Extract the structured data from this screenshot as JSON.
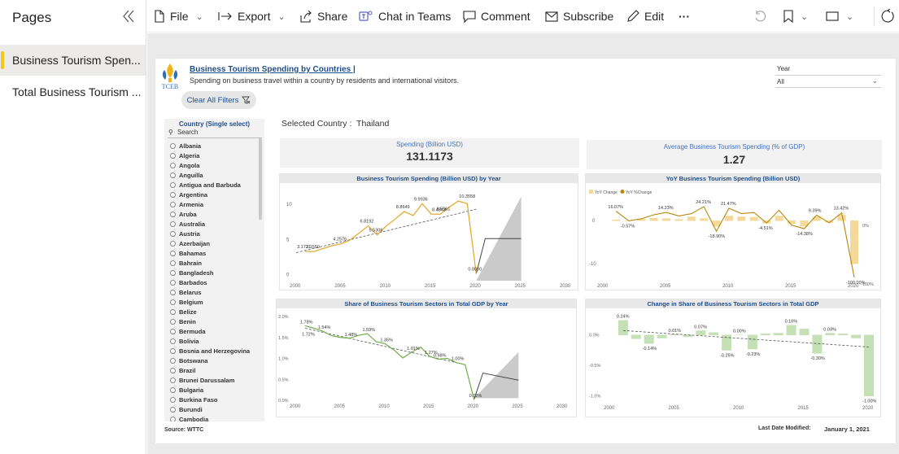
{
  "pages_pane": {
    "title": "Pages",
    "items": [
      {
        "label": "Business Tourism Spen..."
      },
      {
        "label": "Total Business Tourism ..."
      }
    ]
  },
  "toolbar": {
    "file": "File",
    "export": "Export",
    "share": "Share",
    "teams": "Chat in Teams",
    "comment": "Comment",
    "subscribe": "Subscribe",
    "edit": "Edit"
  },
  "report": {
    "title": "Business Tourism Spending by Countries |",
    "subtitle": "Spending on business travel within a country by residents and international visitors.",
    "logo_text": "TCEB",
    "clear_filters": "Clear All Filters",
    "year_label": "Year",
    "year_value": "All",
    "selected_country_label": "Selected Country :",
    "selected_country": "Thailand",
    "source": "Source: WTTC",
    "last_modified_label": "Last Date Modified:",
    "last_modified_value": "January 1, 2021"
  },
  "slicer": {
    "title": "Country (Single select)",
    "search": "Search",
    "countries": [
      "Albania",
      "Algeria",
      "Angola",
      "Anguilla",
      "Antigua and Barbuda",
      "Argentina",
      "Armenia",
      "Aruba",
      "Australia",
      "Austria",
      "Azerbaijan",
      "Bahamas",
      "Bahrain",
      "Bangladesh",
      "Barbados",
      "Belarus",
      "Belgium",
      "Belize",
      "Benin",
      "Bermuda",
      "Bolivia",
      "Bosnia and Herzegovina",
      "Botswana",
      "Brazil",
      "Brunei Darussalam",
      "Bulgaria",
      "Burkina Faso",
      "Burundi",
      "Cambodia"
    ]
  },
  "cards": {
    "spending_label": "Spending (Billion USD)",
    "spending_value": "131.1173",
    "gdp_label": "Average Business Tourism Spending (% of GDP)",
    "gdp_value": "1.27"
  },
  "chart_data": [
    {
      "type": "line",
      "title": "Business Tourism Spending (Billion USD) by Year",
      "x": [
        2001,
        2002,
        2003,
        2004,
        2005,
        2006,
        2007,
        2008,
        2009,
        2010,
        2011,
        2012,
        2013,
        2014,
        2015,
        2016,
        2017,
        2018,
        2019,
        2020
      ],
      "series": [
        {
          "values": [
            3.1721,
            3.155,
            3.6,
            4.0,
            4.2576,
            4.8,
            5.8,
            6.8192,
            5.5306,
            6.8,
            7.8,
            8.8649,
            8.3,
            9.9936,
            8.5,
            8.4843,
            9.5,
            10.3558,
            10.0,
            0.0
          ]
        }
      ],
      "labels": [
        {
          "year": 2001,
          "value": 3.1721,
          "text": "3.1721"
        },
        {
          "year": 2002,
          "value": 3.155,
          "text": "3.1550"
        },
        {
          "year": 2005,
          "value": 4.2576,
          "text": "4.2576"
        },
        {
          "year": 2008,
          "value": 6.8192,
          "text": "6.8192"
        },
        {
          "year": 2009,
          "value": 5.5306,
          "text": "5.5306"
        },
        {
          "year": 2012,
          "value": 8.8649,
          "text": "8.8649"
        },
        {
          "year": 2016,
          "value": 8.4843,
          "text": "8.4843"
        },
        {
          "year": 2014,
          "value": 9.9936,
          "text": "9.9936"
        },
        {
          "year": 2016.5,
          "value": 8.5561,
          "text": "8.5561"
        },
        {
          "year": 2019,
          "value": 10.3558,
          "text": "10.3558"
        },
        {
          "year": 2020,
          "value": 0.0,
          "text": "0.0000"
        }
      ],
      "forecast": {
        "x": [
          2020,
          2025
        ],
        "mid": [
          0,
          5
        ],
        "upper": [
          1,
          11
        ],
        "lower": [
          -1,
          -1
        ]
      },
      "trend": [
        [
          2000,
          3.0
        ],
        [
          2020,
          9.2
        ]
      ],
      "xlim": [
        2000,
        2030
      ],
      "ylim": [
        -1,
        12
      ],
      "yticks": [
        0,
        5,
        10
      ],
      "xticks": [
        2000,
        2005,
        2010,
        2015,
        2020,
        2025,
        2030
      ]
    },
    {
      "type": "bar",
      "title": "YoY Business Tourism Spending (Billion USD)",
      "legend": [
        "YoY Change",
        "YoY %Change"
      ],
      "x": [
        2001,
        2002,
        2003,
        2004,
        2005,
        2006,
        2007,
        2008,
        2009,
        2010,
        2011,
        2012,
        2013,
        2014,
        2015,
        2016,
        2017,
        2018,
        2019,
        2020
      ],
      "bar_values": [
        0.2,
        -0.02,
        0.4,
        0.6,
        0.5,
        0.3,
        0.9,
        0.5,
        -1.3,
        1.1,
        0.9,
        0.8,
        -0.6,
        1.1,
        -0.7,
        -1.3,
        0.9,
        -0.4,
        1.4,
        -10.0
      ],
      "pct_values": [
        16.07,
        -0.57,
        3,
        10,
        14.23,
        8,
        12,
        24.21,
        -18.9,
        21.47,
        12,
        14,
        -4.51,
        18,
        -8,
        -14.38,
        9.39,
        -4,
        13.42,
        -100.0
      ],
      "pct_labels": [
        {
          "year": 2001,
          "text": "16.07%"
        },
        {
          "year": 2002,
          "text": "-0.57%"
        },
        {
          "year": 2005,
          "text": "14.23%"
        },
        {
          "year": 2008,
          "text": "24.21%"
        },
        {
          "year": 2009,
          "text": "-18.90%"
        },
        {
          "year": 2010,
          "text": "21.47%"
        },
        {
          "year": 2013,
          "text": "-4.51%"
        },
        {
          "year": 2017,
          "text": "9.39%"
        },
        {
          "year": 2016,
          "text": "-14.38%"
        },
        {
          "year": 2019,
          "text": "13.42%"
        },
        {
          "year": 2020,
          "text": "-100.00%"
        }
      ],
      "xticks": [
        2000,
        2005,
        2010,
        2015,
        2020
      ],
      "yticks_left": [
        0,
        -10
      ],
      "yticks_right": [
        "0%",
        "-100%"
      ]
    },
    {
      "type": "line",
      "title": "Share of Business Tourism Sectors in Total GDP by Year",
      "x": [
        2001,
        2002,
        2003,
        2004,
        2005,
        2006,
        2007,
        2008,
        2009,
        2010,
        2011,
        2012,
        2013,
        2014,
        2015,
        2016,
        2017,
        2018,
        2019,
        2020
      ],
      "series": [
        {
          "values": [
            1.78,
            1.72,
            1.65,
            1.54,
            1.5,
            1.48,
            1.55,
            1.59,
            1.4,
            1.35,
            1.2,
            1.01,
            1.15,
            1.27,
            1.05,
            0.98,
            1.0,
            0.9,
            0.85,
            0.02
          ]
        }
      ],
      "labels": [
        {
          "year": 2001,
          "text": "1.78%"
        },
        {
          "year": 2001.2,
          "text": "1.72%"
        },
        {
          "year": 2003,
          "text": "1.54%"
        },
        {
          "year": 2006,
          "text": "1.48%"
        },
        {
          "year": 2008,
          "text": "1.59%"
        },
        {
          "year": 2010,
          "text": "1.35%"
        },
        {
          "year": 2013,
          "text": "1.01%"
        },
        {
          "year": 2015,
          "text": "1.27%"
        },
        {
          "year": 2016,
          "text": "0.98%"
        },
        {
          "year": 2018,
          "text": "1.00%"
        },
        {
          "year": 2020,
          "text": "0.02%"
        }
      ],
      "xticks": [
        2000,
        2005,
        2010,
        2015,
        2020,
        2025,
        2030
      ],
      "yticks": [
        "0.0%",
        "0.5%",
        "1.0%",
        "1.5%",
        "2.0%"
      ],
      "ylim": [
        0,
        2.0
      ],
      "xlim": [
        2000,
        2030
      ]
    },
    {
      "type": "bar",
      "title": "Change in Share of Business Tourism Sectors in Total GDP",
      "x": [
        2001,
        2002,
        2003,
        2004,
        2005,
        2006,
        2007,
        2008,
        2009,
        2010,
        2011,
        2012,
        2013,
        2014,
        2015,
        2016,
        2017,
        2018,
        2019,
        2020
      ],
      "values": [
        0.24,
        -0.06,
        -0.14,
        -0.05,
        0.01,
        -0.03,
        0.07,
        0.04,
        -0.25,
        0.0,
        -0.23,
        0.02,
        0.03,
        0.16,
        0.1,
        -0.3,
        0.03,
        0.02,
        -0.05,
        -1.0
      ],
      "labels": [
        {
          "year": 2001,
          "text": "0.24%"
        },
        {
          "year": 2003,
          "text": "-0.14%"
        },
        {
          "year": 2005,
          "text": "0.01%"
        },
        {
          "year": 2007,
          "text": "0.07%"
        },
        {
          "year": 2009,
          "text": "-0.25%"
        },
        {
          "year": 2010,
          "text": "0.00%"
        },
        {
          "year": 2011,
          "text": "-0.23%"
        },
        {
          "year": 2014,
          "text": "0.16%"
        },
        {
          "year": 2016,
          "text": "-0.30%"
        },
        {
          "year": 2017,
          "text": "0.03%"
        },
        {
          "year": 2020,
          "text": "-1.00%"
        }
      ],
      "xticks": [
        2000,
        2005,
        2010,
        2015,
        2020
      ],
      "yticks": [
        "0.0%",
        "-0.5%",
        "-1.0%"
      ],
      "ylim": [
        -1.1,
        0.3
      ]
    }
  ]
}
